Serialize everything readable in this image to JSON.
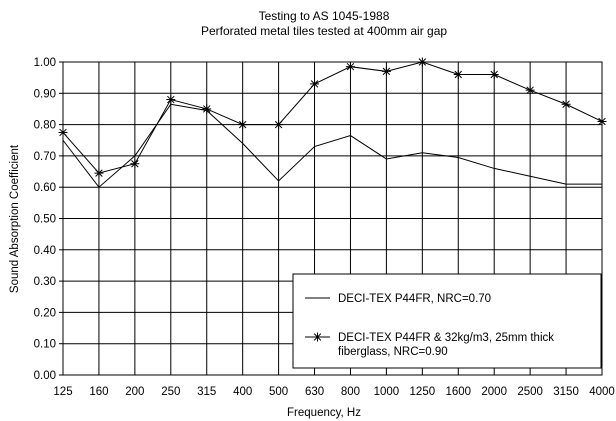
{
  "chart_data": {
    "type": "line",
    "title": "Testing to AS 1045-1988",
    "subtitle": "Perforated metal tiles tested at 400mm air gap",
    "xlabel": "Frequency, Hz",
    "ylabel": "Sound Absorption Coefficient",
    "categories": [
      "125",
      "160",
      "200",
      "250",
      "315",
      "400",
      "500",
      "630",
      "800",
      "1000",
      "1250",
      "1600",
      "2000",
      "2500",
      "3150",
      "4000"
    ],
    "ylim": [
      0,
      1
    ],
    "yticks": [
      "0.00",
      "0.10",
      "0.20",
      "0.30",
      "0.40",
      "0.50",
      "0.60",
      "0.70",
      "0.80",
      "0.90",
      "1.00"
    ],
    "grid": true,
    "legend_position": "bottom-right",
    "series": [
      {
        "name": "DECI-TEX P44FR, NRC=0.70",
        "marker": "none",
        "values": [
          0.75,
          0.6,
          0.7,
          0.865,
          0.845,
          0.74,
          0.62,
          0.73,
          0.765,
          0.69,
          0.71,
          0.695,
          0.66,
          0.635,
          0.61,
          0.61
        ]
      },
      {
        "name_line1": "DECI-TEX P44FR & 32kg/m3, 25mm thick",
        "name_line2": "fiberglass, NRC=0.90",
        "marker": "asterisk",
        "values": [
          0.775,
          0.645,
          0.675,
          0.88,
          0.85,
          0.8,
          0.8,
          0.93,
          0.985,
          0.97,
          1.0,
          0.96,
          0.96,
          0.91,
          0.865,
          0.81
        ]
      }
    ]
  }
}
